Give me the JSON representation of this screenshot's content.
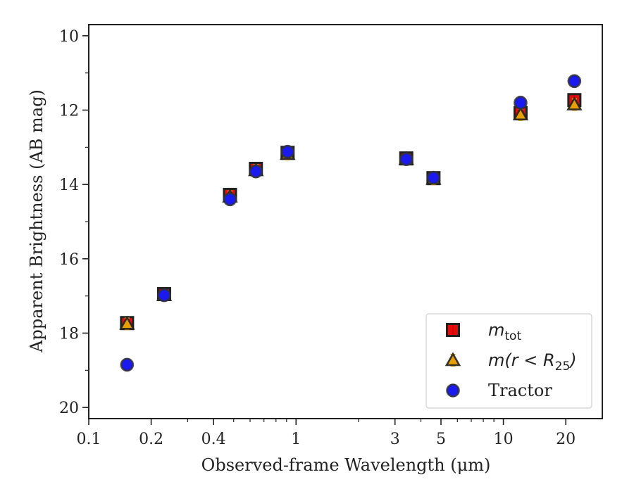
{
  "chart_data": {
    "type": "scatter",
    "title": "",
    "xlabel": "Observed-frame Wavelength (μm)",
    "ylabel": "Apparent Brightness (AB mag)",
    "xscale": "log",
    "xlim": [
      0.1,
      30
    ],
    "ylim": [
      20.3,
      9.7
    ],
    "y_inverted": true,
    "grid": false,
    "legend_position": "lower-right",
    "x_tick_labels": [
      "0.1",
      "0.2",
      "0.4",
      "1",
      "3",
      "5",
      "10",
      "20"
    ],
    "x_ticks": [
      0.1,
      0.2,
      0.4,
      1,
      3,
      5,
      10,
      20
    ],
    "y_ticks": [
      10,
      12,
      14,
      16,
      18,
      20
    ],
    "y_tick_labels": [
      "10",
      "12",
      "14",
      "16",
      "18",
      "20"
    ],
    "series": [
      {
        "name": "m_tot",
        "label_main": "m",
        "label_sub": "tot",
        "marker": "square",
        "color": "#e00000",
        "x": [
          0.153,
          0.231,
          0.48,
          0.64,
          0.91,
          3.4,
          4.6,
          12.1,
          22.0
        ],
        "y": [
          17.73,
          16.95,
          14.28,
          13.58,
          13.15,
          13.3,
          13.83,
          12.08,
          11.73
        ]
      },
      {
        "name": "m(r < R25)",
        "label_main": "m(r < R",
        "label_sub": "25",
        "label_tail": ")",
        "marker": "triangle",
        "color": "#e8a000",
        "x": [
          0.153,
          0.231,
          0.48,
          0.64,
          0.91,
          3.4,
          4.6,
          12.1,
          22.0
        ],
        "y": [
          17.75,
          16.98,
          14.33,
          13.62,
          13.18,
          13.32,
          13.85,
          12.12,
          11.85
        ]
      },
      {
        "name": "Tractor",
        "marker": "circle",
        "color": "#1a1aee",
        "x": [
          0.153,
          0.231,
          0.48,
          0.64,
          0.91,
          3.4,
          4.6,
          12.1,
          22.0
        ],
        "y": [
          18.85,
          16.98,
          14.4,
          13.65,
          13.12,
          13.32,
          13.82,
          11.8,
          11.22
        ]
      }
    ]
  }
}
